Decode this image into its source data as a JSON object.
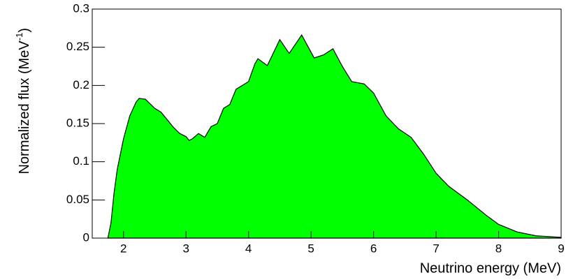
{
  "chart_data": {
    "type": "area",
    "xlabel": "Neutrino energy (MeV)",
    "ylabel": [
      "Normalized flux (MeV",
      "-1",
      ")"
    ],
    "color": "#00ff00",
    "xlim": [
      1.5,
      9
    ],
    "xticks": [
      2,
      3,
      4,
      5,
      6,
      7,
      8,
      9
    ],
    "ylim": [
      0,
      0.3
    ],
    "yticks": [
      0,
      0.05,
      0.1,
      0.15,
      0.2,
      0.25,
      0.3
    ],
    "x": [
      1.75,
      1.8,
      1.85,
      1.9,
      2.0,
      2.1,
      2.2,
      2.25,
      2.35,
      2.4,
      2.5,
      2.6,
      2.7,
      2.8,
      2.9,
      3.0,
      3.05,
      3.1,
      3.2,
      3.3,
      3.4,
      3.5,
      3.6,
      3.7,
      3.8,
      3.9,
      4.0,
      4.1,
      4.15,
      4.3,
      4.5,
      4.65,
      4.85,
      5.05,
      5.2,
      5.35,
      5.5,
      5.65,
      5.85,
      6.0,
      6.2,
      6.4,
      6.6,
      6.8,
      7.0,
      7.2,
      7.5,
      7.8,
      8.0,
      8.3,
      8.6,
      9.0
    ],
    "values": [
      0,
      0.02,
      0.06,
      0.09,
      0.13,
      0.16,
      0.178,
      0.183,
      0.182,
      0.178,
      0.17,
      0.165,
      0.155,
      0.145,
      0.137,
      0.133,
      0.128,
      0.13,
      0.137,
      0.132,
      0.146,
      0.15,
      0.17,
      0.175,
      0.195,
      0.2,
      0.205,
      0.228,
      0.235,
      0.226,
      0.26,
      0.242,
      0.266,
      0.236,
      0.24,
      0.248,
      0.225,
      0.205,
      0.202,
      0.19,
      0.16,
      0.143,
      0.132,
      0.11,
      0.085,
      0.068,
      0.05,
      0.03,
      0.018,
      0.008,
      0.003,
      0.001
    ]
  }
}
